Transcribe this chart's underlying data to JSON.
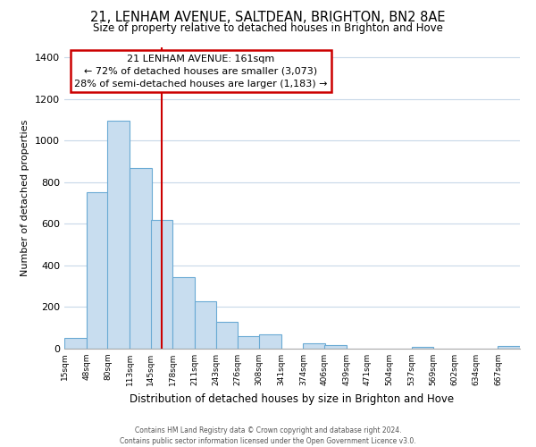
{
  "title": "21, LENHAM AVENUE, SALTDEAN, BRIGHTON, BN2 8AE",
  "subtitle": "Size of property relative to detached houses in Brighton and Hove",
  "xlabel": "Distribution of detached houses by size in Brighton and Hove",
  "ylabel": "Number of detached properties",
  "bar_color": "#c8ddef",
  "bar_edge_color": "#6aaad4",
  "ref_line_x": 161,
  "ref_line_color": "#cc0000",
  "categories": [
    "15sqm",
    "48sqm",
    "80sqm",
    "113sqm",
    "145sqm",
    "178sqm",
    "211sqm",
    "243sqm",
    "276sqm",
    "308sqm",
    "341sqm",
    "374sqm",
    "406sqm",
    "439sqm",
    "471sqm",
    "504sqm",
    "537sqm",
    "569sqm",
    "602sqm",
    "634sqm",
    "667sqm"
  ],
  "bin_starts": [
    15,
    48,
    80,
    113,
    145,
    178,
    211,
    243,
    276,
    308,
    341,
    374,
    406,
    439,
    471,
    504,
    537,
    569,
    602,
    634,
    667
  ],
  "bin_width": 33,
  "values": [
    50,
    750,
    1095,
    870,
    620,
    345,
    228,
    130,
    62,
    68,
    0,
    25,
    18,
    0,
    0,
    0,
    10,
    0,
    0,
    0,
    15
  ],
  "ylim": [
    0,
    1450
  ],
  "yticks": [
    0,
    200,
    400,
    600,
    800,
    1000,
    1200,
    1400
  ],
  "annotation_title": "21 LENHAM AVENUE: 161sqm",
  "annotation_line1": "← 72% of detached houses are smaller (3,073)",
  "annotation_line2": "28% of semi-detached houses are larger (1,183) →",
  "annotation_box_facecolor": "#ffffff",
  "annotation_box_edgecolor": "#cc0000",
  "footer1": "Contains HM Land Registry data © Crown copyright and database right 2024.",
  "footer2": "Contains public sector information licensed under the Open Government Licence v3.0.",
  "background_color": "#ffffff",
  "grid_color": "#c8d8e8"
}
